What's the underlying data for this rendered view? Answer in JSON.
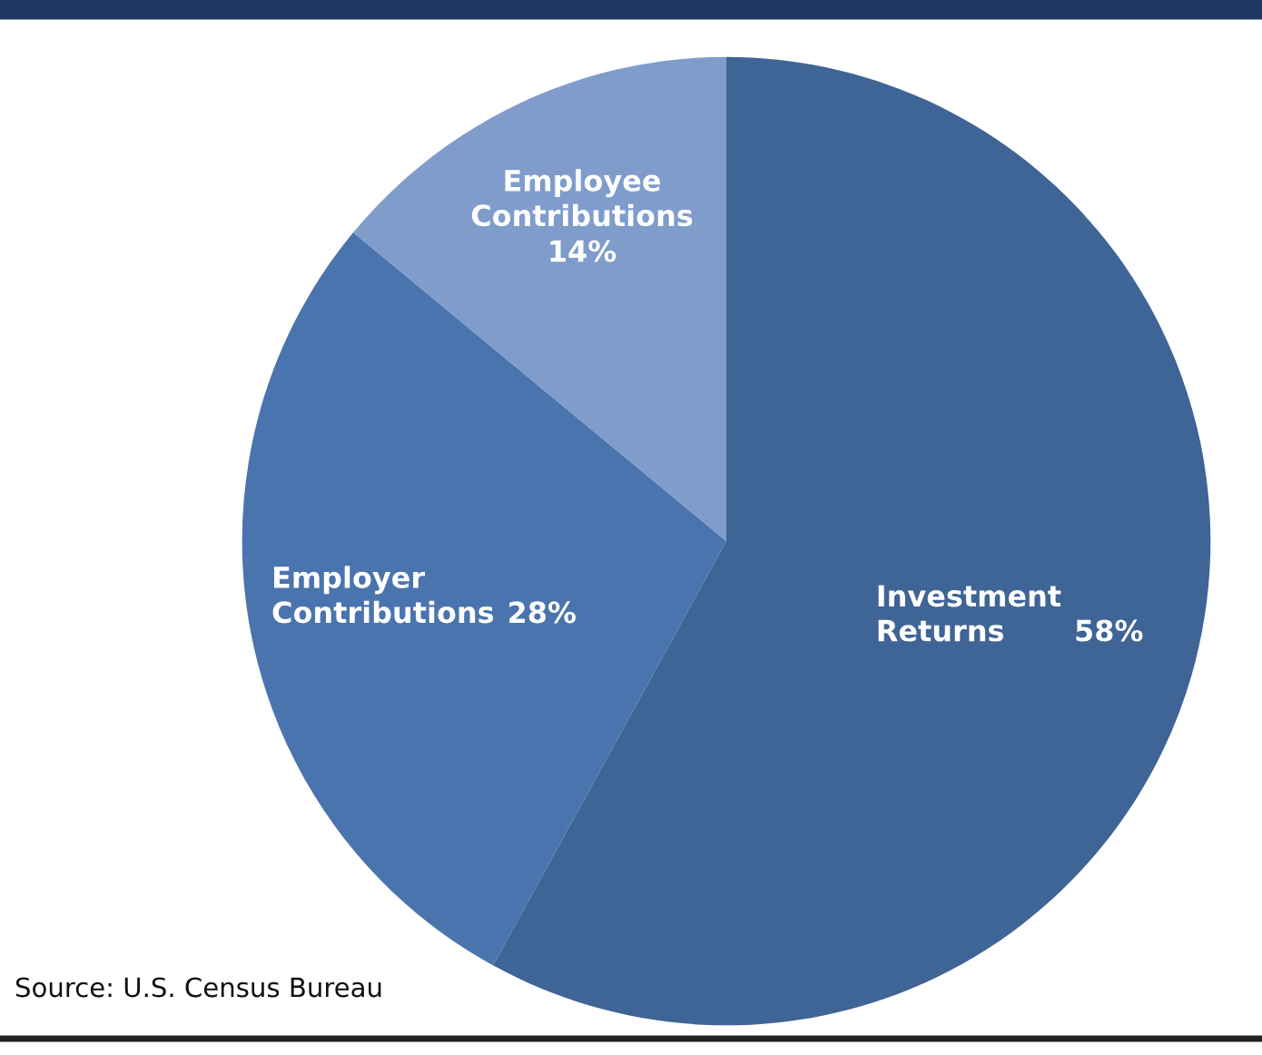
{
  "chart_data": {
    "type": "pie",
    "categories": [
      "Investment Returns",
      "Employer Contributions",
      "Employee Contributions"
    ],
    "values": [
      58,
      28,
      14
    ],
    "value_labels": [
      "58%",
      "28%",
      "14%"
    ],
    "colors": [
      "#3f6496",
      "#4a74ad",
      "#7f9ccb"
    ],
    "annotations": [
      "Source: U.S. Census Bureau"
    ]
  }
}
